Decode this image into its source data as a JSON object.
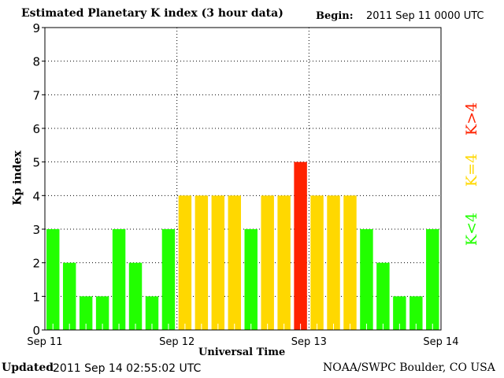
{
  "chart_data": {
    "type": "bar",
    "title": "Estimated Planetary K index (3 hour data)",
    "begin_label": "Begin:",
    "begin_value": "2011 Sep 11 0000 UTC",
    "xlabel": "Universal Time",
    "ylabel": "Kp index",
    "ylim": [
      0,
      9
    ],
    "yticks": [
      "0",
      "1",
      "2",
      "3",
      "4",
      "5",
      "6",
      "7",
      "8",
      "9"
    ],
    "xticks": [
      "Sep 11",
      "Sep 12",
      "Sep 13",
      "Sep 14"
    ],
    "values": [
      3,
      2,
      1,
      1,
      3,
      2,
      1,
      3,
      4,
      4,
      4,
      4,
      3,
      4,
      4,
      5,
      4,
      4,
      4,
      3,
      2,
      1,
      1,
      3
    ],
    "legend": [
      {
        "label": "K<4",
        "color": "#22ff00"
      },
      {
        "label": "K=4",
        "color": "#ffd800"
      },
      {
        "label": "K>4",
        "color": "#ff2200"
      }
    ],
    "grid": true
  },
  "footer": {
    "updated_label": "Updated",
    "updated_value": "2011 Sep 14 02:55:02 UTC",
    "source": "NOAA/SWPC Boulder, CO USA"
  }
}
